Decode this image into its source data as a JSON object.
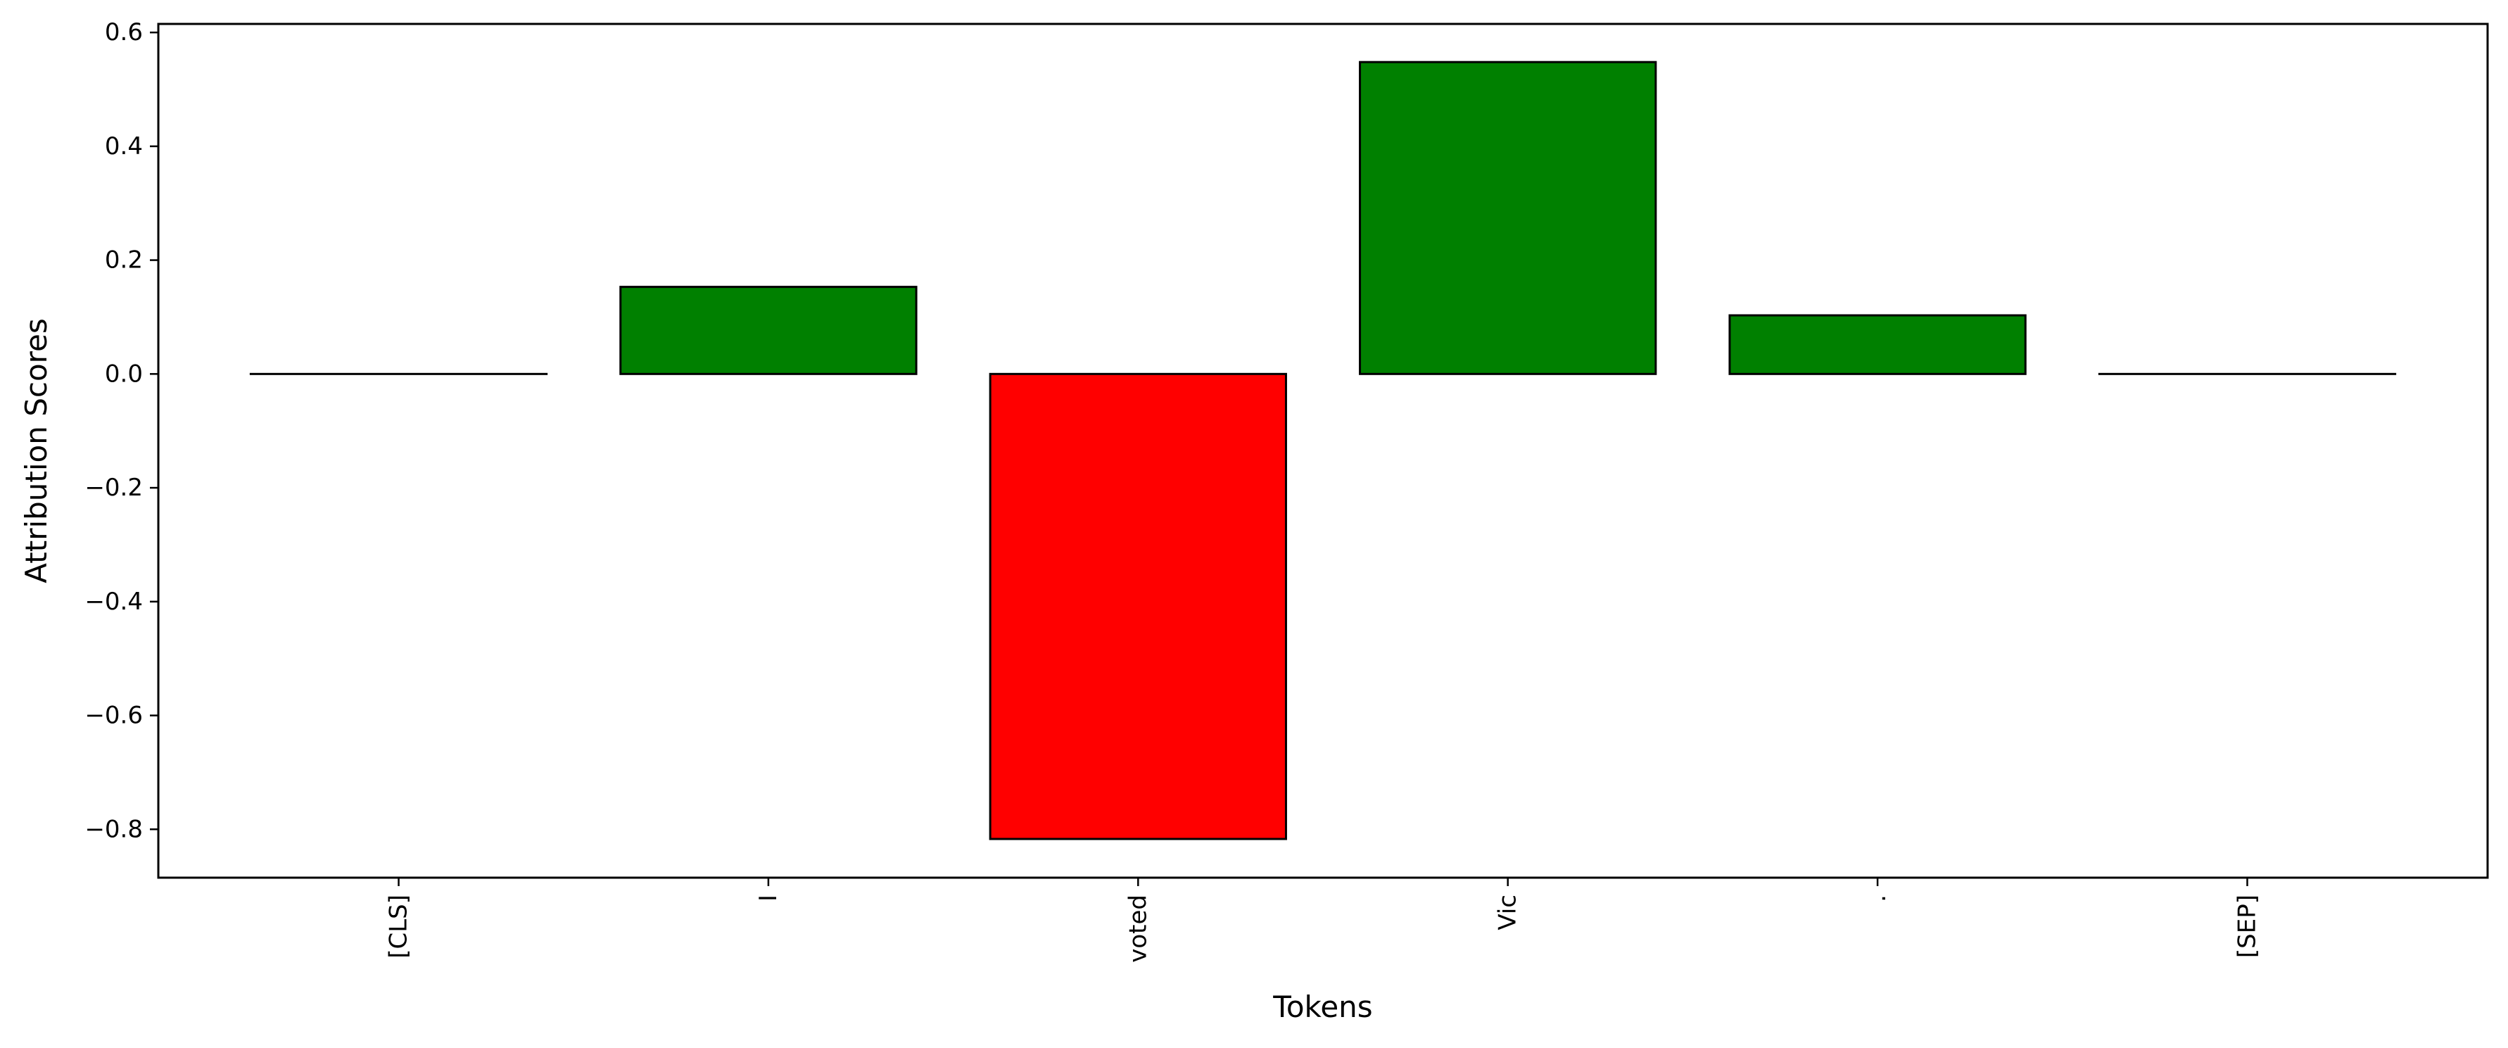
{
  "chart_data": {
    "type": "bar",
    "categories": [
      "[CLS]",
      "I",
      "voted",
      "Vic",
      ".",
      "[SEP]"
    ],
    "values": [
      0.0,
      0.153,
      -0.817,
      0.548,
      0.103,
      0.0
    ],
    "xlabel": "Tokens",
    "ylabel": "Attribution Scores",
    "ylim": [
      -0.885,
      0.615
    ],
    "yticks": [
      0.6,
      0.4,
      0.2,
      0.0,
      -0.2,
      -0.4,
      -0.6,
      -0.8
    ],
    "ytick_labels": [
      "0.6",
      "0.4",
      "0.2",
      "0.0",
      "−0.2",
      "−0.4",
      "−0.6",
      "−0.8"
    ],
    "colors": {
      "positive": "#008000",
      "negative": "#ff0000",
      "edge": "#000000"
    },
    "grid": false,
    "legend": "none",
    "xtick_rotation": "vertical"
  }
}
